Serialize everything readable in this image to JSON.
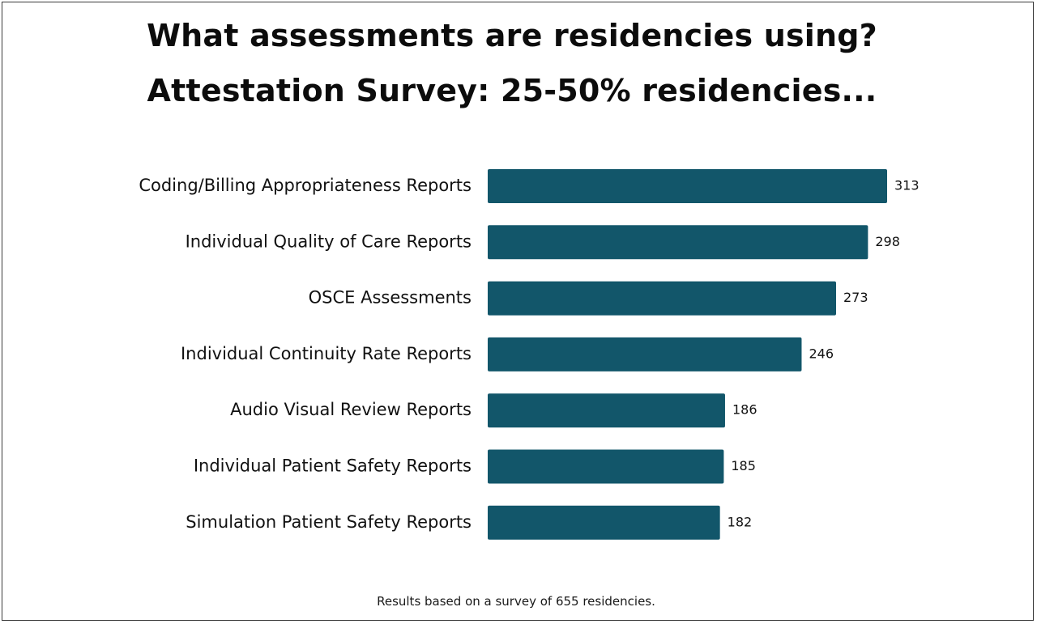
{
  "header": {
    "title": "What assessments are residencies using?",
    "subtitle": "Attestation Survey: 25-50% residencies..."
  },
  "footnote": "Results based on a survey of 655 residencies.",
  "colors": {
    "bar": "#12566a",
    "text": "#111111",
    "border": "#3a3a3a"
  },
  "chart_data": {
    "type": "bar",
    "orientation": "horizontal",
    "title": "What assessments are residencies using?",
    "subtitle": "Attestation Survey: 25-50% residencies...",
    "categories": [
      "Coding/Billing Appropriateness Reports",
      "Individual Quality of Care Reports",
      "OSCE Assessments",
      "Individual Continuity Rate Reports",
      "Audio Visual Review Reports",
      "Individual Patient Safety Reports",
      "Simulation Patient Safety Reports"
    ],
    "values": [
      313,
      298,
      273,
      246,
      186,
      185,
      182
    ],
    "data_labels": [
      "313",
      "298",
      "273",
      "246",
      "186",
      "185",
      "182"
    ],
    "xlabel": "",
    "ylabel": "",
    "xlim": [
      0,
      313
    ],
    "grid": false,
    "legend": "none",
    "annotation": "Results based on a survey of 655 residencies."
  }
}
